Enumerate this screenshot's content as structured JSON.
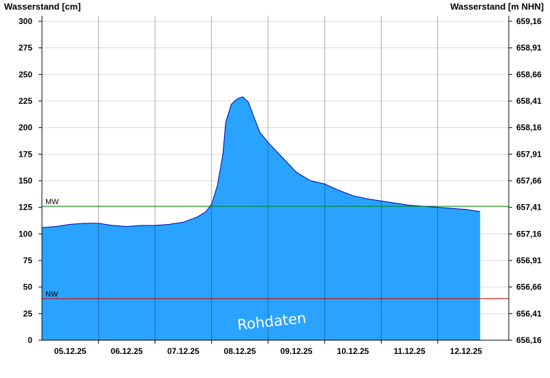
{
  "chart_data": {
    "type": "area",
    "left_axis_label": "Wasserstand [cm]",
    "right_axis_label": "Wasserstand [m NHN]",
    "ylim": [
      0,
      300
    ],
    "y_ticks": [
      0,
      25,
      50,
      75,
      100,
      125,
      150,
      175,
      200,
      225,
      250,
      275,
      300
    ],
    "y_right_ticks": [
      "656,16",
      "656,41",
      "656,66",
      "656,91",
      "657,16",
      "657,41",
      "657,66",
      "657,91",
      "658,16",
      "658,41",
      "658,66",
      "658,91",
      "659,16"
    ],
    "x_tick_labels": [
      "05.12.25",
      "06.12.25",
      "07.12.25",
      "08.12.25",
      "09.12.25",
      "10.12.25",
      "11.12.25",
      "12.12.25"
    ],
    "x_unit": "day index (0 = start of 05.12.25)",
    "xlim": [
      0,
      8.0
    ],
    "series": [
      {
        "x": [
          0,
          0.25,
          0.5,
          0.75,
          1.0,
          1.25,
          1.5,
          1.75,
          2.0,
          2.25,
          2.5,
          2.75,
          2.9,
          3.0,
          3.1,
          3.2,
          3.25,
          3.35,
          3.45,
          3.55,
          3.65,
          3.75,
          3.85,
          4.0,
          4.25,
          4.5,
          4.75,
          5.0,
          5.25,
          5.5,
          5.75,
          6.0,
          6.25,
          6.5,
          6.75,
          7.0,
          7.25,
          7.5,
          7.75
        ],
        "values": [
          106,
          107,
          109,
          110,
          110,
          108,
          107,
          108,
          108,
          109,
          111,
          116,
          121,
          128,
          145,
          175,
          205,
          222,
          227,
          229,
          224,
          210,
          196,
          186,
          172,
          158,
          150,
          147,
          141,
          136,
          133,
          131,
          129,
          127,
          126,
          125,
          124,
          123,
          121
        ]
      }
    ],
    "reference_lines": [
      {
        "label": "MW",
        "value": 126,
        "color": "#008000"
      },
      {
        "label": "NW",
        "value": 39,
        "color": "#cc0000"
      }
    ],
    "annotation": "Rohdaten",
    "fill_color": "#29A3FF",
    "line_color": "#0000A0"
  }
}
